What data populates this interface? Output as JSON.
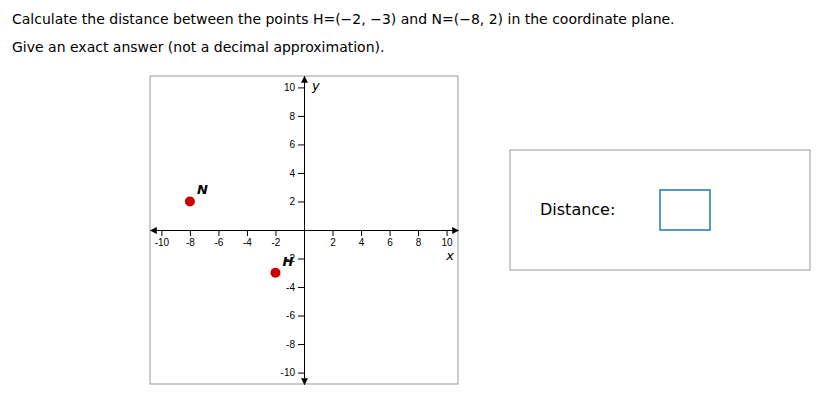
{
  "chart_data": {
    "type": "scatter",
    "title": "Calculate the distance between the points H=(−2, −3) and N=(−8, 2) in the coordinate plane.",
    "subtitle": "Give an exact answer (not a decimal approximation).",
    "x": [
      -2,
      -8
    ],
    "values": [
      -3,
      2
    ],
    "color": "#cc0000",
    "point_labels": [
      "H",
      "N"
    ],
    "x_label": "x",
    "y_label": "y",
    "xlim": [
      -10.8,
      10.8
    ],
    "ylim": [
      -10.8,
      10.8
    ],
    "xticks": [
      -10,
      -8,
      -6,
      -4,
      -2,
      2,
      4,
      6,
      8,
      10
    ],
    "yticks": [
      -10,
      -8,
      -6,
      -4,
      -2,
      2,
      4,
      6,
      8,
      10
    ],
    "grid": false,
    "annotations": [
      "Distance:"
    ]
  }
}
